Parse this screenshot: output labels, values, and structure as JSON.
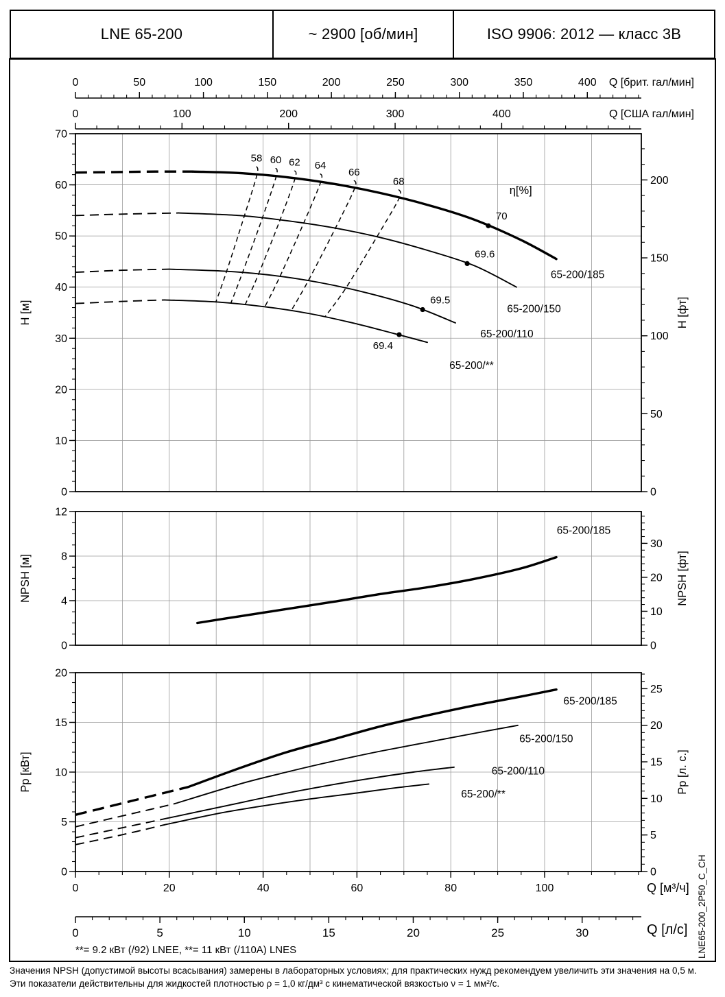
{
  "header": {
    "model": "LNE 65-200",
    "speed": "~ 2900 [об/мин]",
    "standard": "ISO 9906: 2012 — класс 3B"
  },
  "side_code": "LNE65-200_2P50_C_CH",
  "footnote_power": "**= 9.2 кВт (/92) LNEE,  **= 11 кВт (/110A) LNES",
  "notes": {
    "npsh": "Значения NPSH (допустимой высоты всасывания) замерены в лабораторных условиях; для практических нужд рекомендуем увеличить эти значения на 0,5 м.",
    "density": "Эти показатели действительны для жидкостей плотностью ρ = 1,0 кг/дм³ с кинематической вязкостью ν = 1 мм²/с."
  },
  "chart_data": {
    "type": "line",
    "x_unit_primary": "м³/ч",
    "x_range_m3h": [
      0,
      120.6
    ],
    "x_grid_step_m3h": 10,
    "grid": true,
    "x_axes": [
      {
        "position": "top1",
        "label": "Q [брит. гал/мин]",
        "units_per_m3h": 3.6662,
        "ticks": [
          0,
          50,
          100,
          150,
          200,
          250,
          300,
          350,
          400
        ]
      },
      {
        "position": "top2",
        "label": "Q [США гал/мин]",
        "units_per_m3h": 4.4029,
        "ticks": [
          0,
          100,
          200,
          300,
          400
        ]
      },
      {
        "position": "bottom1",
        "label": "Q [м³/ч]",
        "units_per_m3h": 1,
        "ticks": [
          0,
          20,
          40,
          60,
          80,
          100
        ]
      },
      {
        "position": "bottom2",
        "label": "Q [л/с]",
        "units_per_m3h": 0.27778,
        "ticks": [
          0,
          5,
          10,
          15,
          20,
          25,
          30
        ]
      }
    ],
    "panels": [
      {
        "name": "head",
        "ylabel_left": "H [м]",
        "ylabel_right": "H [фт]",
        "ylim": [
          0,
          70
        ],
        "yticks_left": [
          0,
          10,
          20,
          30,
          40,
          50,
          60,
          70
        ],
        "yticks_right": [
          0,
          50,
          100,
          150,
          200
        ],
        "right_per_left": 3.2808,
        "series": [
          {
            "name": "65-200/185",
            "thick": true,
            "dash_points": [
              [
                0,
                62.4
              ],
              [
                9,
                62.5
              ],
              [
                17,
                62.6
              ],
              [
                25,
                62.6
              ]
            ],
            "points": [
              [
                25,
                62.6
              ],
              [
                35,
                62.3
              ],
              [
                45,
                61.5
              ],
              [
                55,
                60.2
              ],
              [
                65,
                58.4
              ],
              [
                75,
                56.1
              ],
              [
                85,
                53.2
              ],
              [
                95,
                49.2
              ],
              [
                102.5,
                45.5
              ]
            ]
          },
          {
            "name": "65-200/150",
            "thick": false,
            "dash_points": [
              [
                0,
                54.0
              ],
              [
                11,
                54.3
              ],
              [
                22,
                54.5
              ]
            ],
            "points": [
              [
                22,
                54.5
              ],
              [
                35,
                54.0
              ],
              [
                45,
                53.0
              ],
              [
                55,
                51.6
              ],
              [
                65,
                49.7
              ],
              [
                75,
                47.2
              ],
              [
                85,
                44.2
              ],
              [
                94,
                40.0
              ]
            ]
          },
          {
            "name": "65-200/110",
            "thick": false,
            "dash_points": [
              [
                0,
                42.9
              ],
              [
                10,
                43.3
              ],
              [
                20,
                43.5
              ]
            ],
            "points": [
              [
                20,
                43.5
              ],
              [
                32,
                43.1
              ],
              [
                42,
                42.3
              ],
              [
                52,
                40.9
              ],
              [
                62,
                38.9
              ],
              [
                72,
                36.3
              ],
              [
                81,
                33.0
              ]
            ]
          },
          {
            "name": "65-200/**",
            "thick": false,
            "dash_points": [
              [
                0,
                36.8
              ],
              [
                10,
                37.2
              ],
              [
                19,
                37.5
              ]
            ],
            "points": [
              [
                19,
                37.5
              ],
              [
                30,
                37.1
              ],
              [
                40,
                36.2
              ],
              [
                50,
                34.8
              ],
              [
                60,
                32.8
              ],
              [
                68,
                30.9
              ],
              [
                75,
                29.2
              ]
            ]
          }
        ],
        "efficiency_label": "η[%]",
        "efficiency_label_pos": [
          92.5,
          58.2
        ],
        "efficiency_lines": [
          {
            "label": "58",
            "points": [
              [
                38.6,
                63.6
              ],
              [
                38.7,
                62.0
              ],
              [
                36.0,
                53.9
              ],
              [
                32.2,
                43.0
              ],
              [
                29.9,
                37.0
              ]
            ]
          },
          {
            "label": "60",
            "points": [
              [
                42.7,
                63.3
              ],
              [
                42.8,
                61.7
              ],
              [
                39.8,
                53.4
              ],
              [
                35.6,
                42.8
              ],
              [
                33.1,
                36.8
              ]
            ]
          },
          {
            "label": "62",
            "points": [
              [
                46.7,
                62.8
              ],
              [
                46.8,
                61.2
              ],
              [
                43.3,
                52.4
              ],
              [
                39.0,
                42.5
              ],
              [
                36.2,
                36.6
              ]
            ]
          },
          {
            "label": "64",
            "points": [
              [
                52.2,
                62.2
              ],
              [
                52.3,
                60.6
              ],
              [
                48.6,
                52.4
              ],
              [
                43.6,
                42.1
              ],
              [
                40.4,
                36.2
              ]
            ]
          },
          {
            "label": "66",
            "points": [
              [
                59.4,
                60.9
              ],
              [
                59.5,
                59.3
              ],
              [
                55.4,
                51.5
              ],
              [
                49.6,
                41.2
              ],
              [
                46.0,
                35.4
              ]
            ]
          },
          {
            "label": "68",
            "points": [
              [
                68.9,
                59.1
              ],
              [
                69.0,
                57.4
              ],
              [
                64.3,
                49.9
              ],
              [
                57.7,
                39.9
              ],
              [
                53.2,
                34.2
              ]
            ]
          }
        ],
        "bep_points": [
          {
            "label": "70",
            "q": 88.0,
            "h": 52.0,
            "side": "above-right"
          },
          {
            "label": "69.6",
            "q": 83.5,
            "h": 44.6,
            "side": "above-right"
          },
          {
            "label": "69.5",
            "q": 74.0,
            "h": 35.6,
            "side": "above-right"
          },
          {
            "label": "69.4",
            "q": 69.0,
            "h": 30.7,
            "side": "below-left"
          }
        ],
        "labels": [
          {
            "text": "65-200/185",
            "q": 101.3,
            "h": 41.8
          },
          {
            "text": "65-200/150",
            "q": 92.0,
            "h": 35.1
          },
          {
            "text": "65-200/110",
            "q": 86.3,
            "h": 30.2
          },
          {
            "text": "65-200/**",
            "q": 79.7,
            "h": 24.0
          }
        ]
      },
      {
        "name": "npsh",
        "ylabel_left": "NPSH [м]",
        "ylabel_right": "NPSH [фт]",
        "ylim": [
          0,
          12
        ],
        "yticks_left": [
          0,
          4,
          8,
          12
        ],
        "yticks_right": [
          0,
          10,
          20,
          30
        ],
        "right_per_left": 3.2808,
        "series": [
          {
            "name": "65-200/185",
            "thick": true,
            "points": [
              [
                26,
                2.0
              ],
              [
                35,
                2.6
              ],
              [
                45,
                3.25
              ],
              [
                55,
                3.9
              ],
              [
                65,
                4.6
              ],
              [
                75,
                5.2
              ],
              [
                85,
                5.95
              ],
              [
                95,
                6.9
              ],
              [
                102.5,
                7.9
              ]
            ]
          }
        ],
        "labels": [
          {
            "text": "65-200/185",
            "q": 102.6,
            "h": 10.0
          }
        ]
      },
      {
        "name": "power",
        "ylabel_left": "Pp [кВт]",
        "ylabel_right": "Pp [л. с.]",
        "ylim": [
          0,
          20
        ],
        "yticks_left": [
          0,
          5,
          10,
          15,
          20
        ],
        "yticks_right": [
          0,
          5,
          10,
          15,
          20,
          25
        ],
        "right_per_left": 1.35962,
        "series": [
          {
            "name": "65-200/185",
            "thick": true,
            "dash_points": [
              [
                0,
                5.7
              ],
              [
                12,
                7.1
              ],
              [
                24,
                8.5
              ]
            ],
            "points": [
              [
                24,
                8.5
              ],
              [
                35,
                10.4
              ],
              [
                45,
                12.0
              ],
              [
                55,
                13.3
              ],
              [
                65,
                14.6
              ],
              [
                75,
                15.7
              ],
              [
                85,
                16.7
              ],
              [
                95,
                17.6
              ],
              [
                102.5,
                18.3
              ]
            ]
          },
          {
            "name": "65-200/150",
            "thick": false,
            "dash_points": [
              [
                0,
                4.5
              ],
              [
                11,
                5.7
              ],
              [
                21,
                6.8
              ]
            ],
            "points": [
              [
                21,
                6.8
              ],
              [
                35,
                8.8
              ],
              [
                45,
                10.0
              ],
              [
                55,
                11.1
              ],
              [
                65,
                12.1
              ],
              [
                75,
                13.0
              ],
              [
                85,
                13.9
              ],
              [
                94.3,
                14.7
              ]
            ]
          },
          {
            "name": "65-200/110",
            "thick": false,
            "dash_points": [
              [
                0,
                3.4
              ],
              [
                10,
                4.4
              ],
              [
                20,
                5.4
              ]
            ],
            "points": [
              [
                20,
                5.4
              ],
              [
                32,
                6.6
              ],
              [
                42,
                7.6
              ],
              [
                52,
                8.5
              ],
              [
                62,
                9.3
              ],
              [
                72,
                10.0
              ],
              [
                80.7,
                10.5
              ]
            ]
          },
          {
            "name": "65-200/**",
            "thick": false,
            "dash_points": [
              [
                0,
                2.7
              ],
              [
                10,
                3.7
              ],
              [
                19,
                4.7
              ]
            ],
            "points": [
              [
                19,
                4.7
              ],
              [
                30,
                5.8
              ],
              [
                40,
                6.6
              ],
              [
                50,
                7.3
              ],
              [
                60,
                7.9
              ],
              [
                68,
                8.4
              ],
              [
                75.3,
                8.8
              ]
            ]
          }
        ],
        "labels": [
          {
            "text": "65-200/185",
            "q": 104.0,
            "h": 16.8
          },
          {
            "text": "65-200/150",
            "q": 94.6,
            "h": 13.0
          },
          {
            "text": "65-200/110",
            "q": 88.7,
            "h": 9.75
          },
          {
            "text": "65-200/**",
            "q": 82.2,
            "h": 7.45
          }
        ]
      }
    ]
  }
}
